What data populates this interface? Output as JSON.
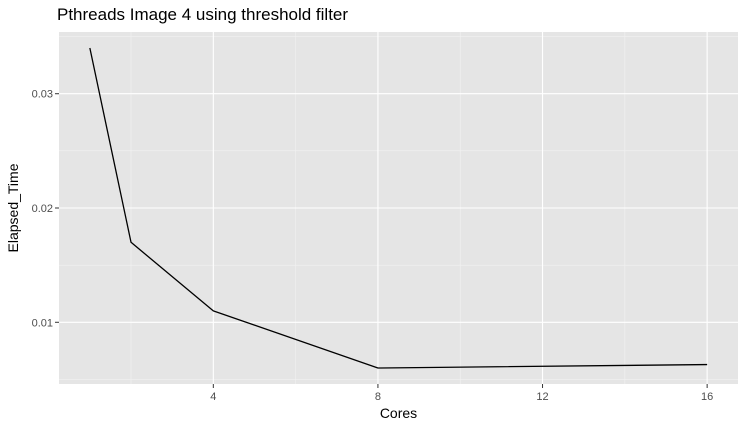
{
  "chart_data": {
    "type": "line",
    "title": "Pthreads Image 4 using threshold filter",
    "xlabel": "Cores",
    "ylabel": "Elapsed_Time",
    "x": [
      1,
      2,
      4,
      8,
      16
    ],
    "series": [
      {
        "values": [
          0.034,
          0.017,
          0.011,
          0.006,
          0.0063
        ]
      }
    ],
    "xlim": [
      0.25,
      16.75
    ],
    "ylim": [
      0.0046,
      0.0354
    ],
    "x_ticks": [
      4,
      8,
      12,
      16
    ],
    "y_ticks": [
      0.01,
      0.02,
      0.03
    ],
    "x_tick_labels": [
      "4",
      "8",
      "12",
      "16"
    ],
    "y_tick_labels": [
      "0.01",
      "0.02",
      "0.03"
    ],
    "grid": true,
    "legend": "none",
    "colors": {
      "panel_background": "#e5e5e5",
      "grid_major": "#ffffff",
      "grid_minor": "#f2f2f2",
      "line": "#000000",
      "tick_mark": "#333333",
      "tick_text": "#4d4d4d"
    }
  }
}
